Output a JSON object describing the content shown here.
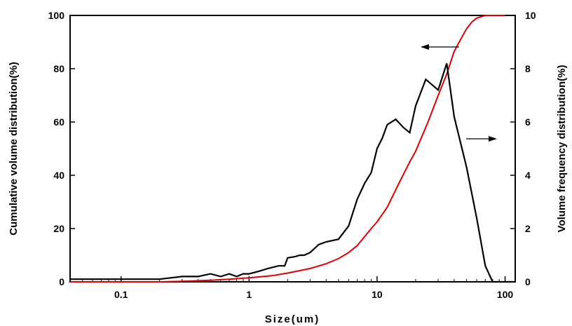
{
  "chart_data": {
    "type": "line",
    "title": "",
    "xlabel": "Size(um)",
    "xscale": "log",
    "xlim": [
      0.04,
      120
    ],
    "xticks": [
      0.1,
      1,
      10,
      100
    ],
    "xtick_labels": [
      "0.1",
      "1",
      "10",
      "100"
    ],
    "ylabel_left": "Cumulative volume distribution(%)",
    "ylim_left": [
      0,
      100
    ],
    "yticks_left": [
      "0",
      "20",
      "40",
      "60",
      "80",
      "100"
    ],
    "ylabel_right": "Volume frequency distribution(%)",
    "ylim_right": [
      0,
      10
    ],
    "yticks_right": [
      "0",
      "2",
      "4",
      "6",
      "8",
      "10"
    ],
    "grid": false,
    "colors": {
      "cumulative": "#e00000",
      "frequency": "#000000",
      "axes": "#000000"
    },
    "series": [
      {
        "id": "cumulative",
        "axis": "left",
        "points": [
          [
            0.04,
            0
          ],
          [
            0.2,
            0
          ],
          [
            0.3,
            0.2
          ],
          [
            0.5,
            0.6
          ],
          [
            0.7,
            1
          ],
          [
            1,
            1.5
          ],
          [
            1.5,
            2.3
          ],
          [
            2,
            3.3
          ],
          [
            3,
            5
          ],
          [
            4,
            6.8
          ],
          [
            5,
            8.7
          ],
          [
            6,
            11
          ],
          [
            7,
            13.6
          ],
          [
            8,
            17
          ],
          [
            9,
            20
          ],
          [
            10,
            22.5
          ],
          [
            12,
            28
          ],
          [
            15,
            37.5
          ],
          [
            18,
            45
          ],
          [
            20,
            49
          ],
          [
            25,
            60
          ],
          [
            30,
            70
          ],
          [
            35,
            78
          ],
          [
            40,
            86.5
          ],
          [
            45,
            91
          ],
          [
            50,
            95
          ],
          [
            55,
            97.5
          ],
          [
            60,
            99
          ],
          [
            70,
            100
          ],
          [
            100,
            100
          ]
        ]
      },
      {
        "id": "frequency",
        "axis": "right",
        "points": [
          [
            0.04,
            0.1
          ],
          [
            0.2,
            0.1
          ],
          [
            0.3,
            0.2
          ],
          [
            0.4,
            0.2
          ],
          [
            0.5,
            0.3
          ],
          [
            0.6,
            0.2
          ],
          [
            0.7,
            0.3
          ],
          [
            0.8,
            0.2
          ],
          [
            0.9,
            0.3
          ],
          [
            1.0,
            0.3
          ],
          [
            1.2,
            0.4
          ],
          [
            1.4,
            0.5
          ],
          [
            1.7,
            0.6
          ],
          [
            1.9,
            0.6
          ],
          [
            2.0,
            0.9
          ],
          [
            2.3,
            0.95
          ],
          [
            2.5,
            1.0
          ],
          [
            2.7,
            1.0
          ],
          [
            3.0,
            1.1
          ],
          [
            3.5,
            1.4
          ],
          [
            4.0,
            1.5
          ],
          [
            5.0,
            1.6
          ],
          [
            6.0,
            2.1
          ],
          [
            7.0,
            3.1
          ],
          [
            8.0,
            3.7
          ],
          [
            9.0,
            4.1
          ],
          [
            10.0,
            5.0
          ],
          [
            11.0,
            5.4
          ],
          [
            12.0,
            5.9
          ],
          [
            14.0,
            6.1
          ],
          [
            16.0,
            5.8
          ],
          [
            18.0,
            5.6
          ],
          [
            20.0,
            6.6
          ],
          [
            24.0,
            7.6
          ],
          [
            30.0,
            7.2
          ],
          [
            35.0,
            8.2
          ],
          [
            40.0,
            6.2
          ],
          [
            50.0,
            4.3
          ],
          [
            60.0,
            2.4
          ],
          [
            70.0,
            0.6
          ],
          [
            80.0,
            0
          ],
          [
            120.0,
            0
          ]
        ]
      }
    ]
  }
}
